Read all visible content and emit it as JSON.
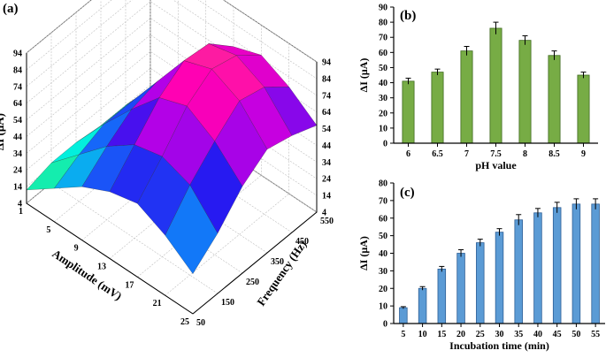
{
  "figure": {
    "panels": [
      {
        "label": "(a)"
      },
      {
        "label": "(b)"
      },
      {
        "label": "(c)"
      }
    ]
  },
  "chart_data": [
    {
      "panel": "(a)",
      "type": "surface3d",
      "zlabel": "ΔI (μA)",
      "xlabel": "Amplitude (mV)",
      "ylabel": "Frequency (Hz)",
      "z_ticks": [
        4,
        14,
        24,
        34,
        44,
        54,
        64,
        74,
        84,
        94
      ],
      "z_ticks_right": [
        4,
        14,
        24,
        34,
        44,
        54,
        64,
        74,
        84,
        94
      ],
      "x_ticks": [
        1,
        5,
        9,
        13,
        17,
        21,
        25
      ],
      "y_ticks": [
        50,
        150,
        250,
        350,
        450,
        550
      ],
      "amplitude": [
        1,
        5,
        9,
        13,
        17,
        21,
        25
      ],
      "frequency": [
        50,
        150,
        250,
        350,
        450,
        550
      ],
      "z": [
        [
          12,
          16,
          16,
          14,
          14,
          12
        ],
        [
          24,
          32,
          38,
          38,
          36,
          32
        ],
        [
          36,
          48,
          58,
          62,
          60,
          52
        ],
        [
          44,
          60,
          76,
          86,
          84,
          70
        ],
        [
          48,
          64,
          82,
          92,
          88,
          76
        ],
        [
          40,
          58,
          72,
          84,
          80,
          68
        ],
        [
          28,
          40,
          56,
          66,
          62,
          56
        ]
      ],
      "zlim": [
        4,
        94
      ]
    },
    {
      "panel": "(b)",
      "type": "bar",
      "categories": [
        "6",
        "6.5",
        "7",
        "7.5",
        "8",
        "8.5",
        "9"
      ],
      "values": [
        41,
        47,
        61,
        76,
        68,
        58,
        45
      ],
      "errors": [
        2,
        2,
        3,
        4,
        3,
        3,
        2
      ],
      "xlabel": "pH value",
      "ylabel": "ΔI (μA)",
      "ylim": [
        0,
        90
      ],
      "yticks": [
        0,
        10,
        20,
        30,
        40,
        50,
        60,
        70,
        80,
        90
      ],
      "bar_color": "#77ac45",
      "bar_edge": "#3f6a1f"
    },
    {
      "panel": "(c)",
      "type": "bar",
      "categories": [
        "5",
        "10",
        "15",
        "20",
        "25",
        "30",
        "35",
        "40",
        "45",
        "50",
        "55"
      ],
      "values": [
        9,
        20,
        31,
        40,
        46,
        52,
        59,
        63,
        66,
        68,
        68
      ],
      "errors": [
        0.6,
        1,
        1.5,
        2,
        2,
        2,
        3,
        2.5,
        3,
        3,
        3
      ],
      "xlabel": "Incubation time (min)",
      "ylabel": "ΔI (μA)",
      "ylim": [
        0,
        80
      ],
      "yticks": [
        0,
        10,
        20,
        30,
        40,
        50,
        60,
        70,
        80
      ],
      "bar_color": "#5b9bd5",
      "bar_edge": "#2e5f96"
    }
  ]
}
